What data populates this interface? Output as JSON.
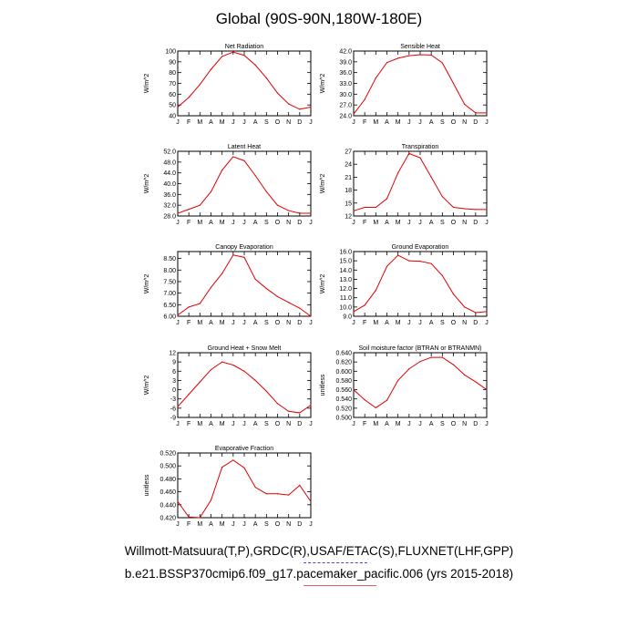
{
  "figure": {
    "title": "Global (90S-90N,180W-180E)",
    "caption_line1": "Willmott-Matsuura(T,P),GRDC(R),USAF/ETAC(S),FLUXNET(LHF,GPP)",
    "caption_line2": "b.e21.BSSP370cmip6.f09_g17.pacemaker_pacific.006 (yrs 2015-2018)",
    "line_color": "#e00000",
    "underline_blue": "#4444cc",
    "underline_red": "#e06060"
  },
  "chart_data": [
    {
      "type": "line",
      "title": "Net Radiation",
      "ylabel": "W/m^2",
      "xlabel": "",
      "categories": [
        "J",
        "F",
        "M",
        "A",
        "M",
        "J",
        "J",
        "A",
        "S",
        "O",
        "N",
        "D",
        "J"
      ],
      "yticks": [
        "40",
        "50",
        "60",
        "70",
        "80",
        "90",
        "100"
      ],
      "ytick_values": [
        40,
        50,
        60,
        70,
        80,
        90,
        100
      ],
      "ylim": [
        40,
        100
      ],
      "values": [
        48,
        57,
        69,
        83,
        95,
        99,
        96,
        87,
        75,
        61,
        51,
        46,
        48
      ]
    },
    {
      "type": "line",
      "title": "Sensible Heat",
      "ylabel": "W/m^2",
      "xlabel": "",
      "categories": [
        "J",
        "F",
        "M",
        "A",
        "M",
        "J",
        "J",
        "A",
        "S",
        "O",
        "N",
        "D",
        "J"
      ],
      "yticks": [
        "24.0",
        "27.0",
        "30.0",
        "33.0",
        "36.0",
        "39.0",
        "42.0"
      ],
      "ytick_values": [
        24,
        27,
        30,
        33,
        36,
        39,
        42
      ],
      "ylim": [
        24,
        42
      ],
      "values": [
        24.5,
        28.5,
        34.5,
        38.8,
        40.0,
        40.7,
        41.0,
        40.9,
        38.7,
        33.0,
        27.2,
        24.8,
        24.8
      ]
    },
    {
      "type": "line",
      "title": "Latent Heat",
      "ylabel": "W/m^2",
      "xlabel": "",
      "categories": [
        "J",
        "F",
        "M",
        "A",
        "M",
        "J",
        "J",
        "A",
        "S",
        "O",
        "N",
        "D",
        "J"
      ],
      "yticks": [
        "28.0",
        "32.0",
        "36.0",
        "40.0",
        "44.0",
        "48.0",
        "52.0"
      ],
      "ytick_values": [
        28,
        32,
        36,
        40,
        44,
        48,
        52
      ],
      "ylim": [
        28,
        52
      ],
      "values": [
        29.0,
        30.5,
        32.0,
        37.0,
        45.0,
        50.0,
        48.5,
        43.0,
        37.0,
        32.0,
        30.0,
        29.0,
        29.0
      ]
    },
    {
      "type": "line",
      "title": "Transpiration",
      "ylabel": "W/m^2",
      "xlabel": "",
      "categories": [
        "J",
        "F",
        "M",
        "A",
        "M",
        "J",
        "J",
        "A",
        "S",
        "O",
        "N",
        "D",
        "J"
      ],
      "yticks": [
        "12",
        "15",
        "18",
        "21",
        "24",
        "27"
      ],
      "ytick_values": [
        12,
        15,
        18,
        21,
        24,
        27
      ],
      "ylim": [
        12,
        27
      ],
      "values": [
        13.2,
        14.0,
        14.0,
        16.0,
        22.0,
        26.5,
        25.5,
        21.0,
        16.5,
        14.0,
        13.7,
        13.5,
        13.5
      ]
    },
    {
      "type": "line",
      "title": "Canopy Evaporation",
      "ylabel": "W/m^2",
      "xlabel": "",
      "categories": [
        "J",
        "F",
        "M",
        "A",
        "M",
        "J",
        "J",
        "A",
        "S",
        "O",
        "N",
        "D",
        "J"
      ],
      "yticks": [
        "6.00",
        "6.50",
        "7.00",
        "7.50",
        "8.00",
        "8.50"
      ],
      "ytick_values": [
        6.0,
        6.5,
        7.0,
        7.5,
        8.0,
        8.5
      ],
      "ylim": [
        6.0,
        8.8
      ],
      "values": [
        6.05,
        6.4,
        6.55,
        7.25,
        7.85,
        8.65,
        8.55,
        7.6,
        7.2,
        6.85,
        6.6,
        6.35,
        6.0
      ]
    },
    {
      "type": "line",
      "title": "Ground Evaporation",
      "ylabel": "W/m^2",
      "xlabel": "",
      "categories": [
        "J",
        "F",
        "M",
        "A",
        "M",
        "J",
        "J",
        "A",
        "S",
        "O",
        "N",
        "D",
        "J"
      ],
      "yticks": [
        "9.0",
        "10.0",
        "11.0",
        "12.0",
        "13.0",
        "14.0",
        "15.0",
        "16.0"
      ],
      "ytick_values": [
        9,
        10,
        11,
        12,
        13,
        14,
        15,
        16
      ],
      "ylim": [
        9,
        16
      ],
      "values": [
        9.5,
        10.2,
        11.8,
        14.4,
        15.6,
        15.0,
        14.95,
        14.7,
        13.4,
        11.4,
        10.0,
        9.4,
        9.5
      ]
    },
    {
      "type": "line",
      "title": "Ground Heat + Snow Melt",
      "ylabel": "W/m^2",
      "xlabel": "",
      "categories": [
        "J",
        "F",
        "M",
        "A",
        "M",
        "J",
        "J",
        "A",
        "S",
        "O",
        "N",
        "D",
        "J"
      ],
      "yticks": [
        "-9",
        "-6",
        "-3",
        "0",
        "3",
        "6",
        "9",
        "12"
      ],
      "ytick_values": [
        -9,
        -6,
        -3,
        0,
        3,
        6,
        9,
        12
      ],
      "ylim": [
        -9,
        12
      ],
      "values": [
        -5.5,
        -1.5,
        2.5,
        6.5,
        9.0,
        8.0,
        6.0,
        3.0,
        -0.5,
        -4.5,
        -7.0,
        -7.5,
        -5.0
      ]
    },
    {
      "type": "line",
      "title": "Soil moisture factor (BTRAN or BTRANMN)",
      "ylabel": "unitless",
      "xlabel": "",
      "categories": [
        "J",
        "F",
        "M",
        "A",
        "M",
        "J",
        "J",
        "A",
        "S",
        "O",
        "N",
        "D",
        "J"
      ],
      "yticks": [
        "0.500",
        "0.520",
        "0.540",
        "0.560",
        "0.580",
        "0.600",
        "0.620",
        "0.640"
      ],
      "ytick_values": [
        0.5,
        0.52,
        0.54,
        0.56,
        0.58,
        0.6,
        0.62,
        0.64
      ],
      "ylim": [
        0.5,
        0.64
      ],
      "values": [
        0.56,
        0.538,
        0.521,
        0.537,
        0.58,
        0.605,
        0.621,
        0.63,
        0.63,
        0.614,
        0.592,
        0.577,
        0.56
      ]
    },
    {
      "type": "line",
      "title": "Evaporative Fraction",
      "ylabel": "unitless",
      "xlabel": "",
      "categories": [
        "J",
        "F",
        "M",
        "A",
        "M",
        "J",
        "J",
        "A",
        "S",
        "O",
        "N",
        "D",
        "J"
      ],
      "yticks": [
        "0.420",
        "0.440",
        "0.460",
        "0.480",
        "0.500",
        "0.520"
      ],
      "ytick_values": [
        0.42,
        0.44,
        0.46,
        0.48,
        0.5,
        0.52
      ],
      "ylim": [
        0.42,
        0.52
      ],
      "values": [
        0.445,
        0.421,
        0.42,
        0.447,
        0.498,
        0.509,
        0.497,
        0.467,
        0.457,
        0.457,
        0.455,
        0.47,
        0.445
      ]
    }
  ]
}
